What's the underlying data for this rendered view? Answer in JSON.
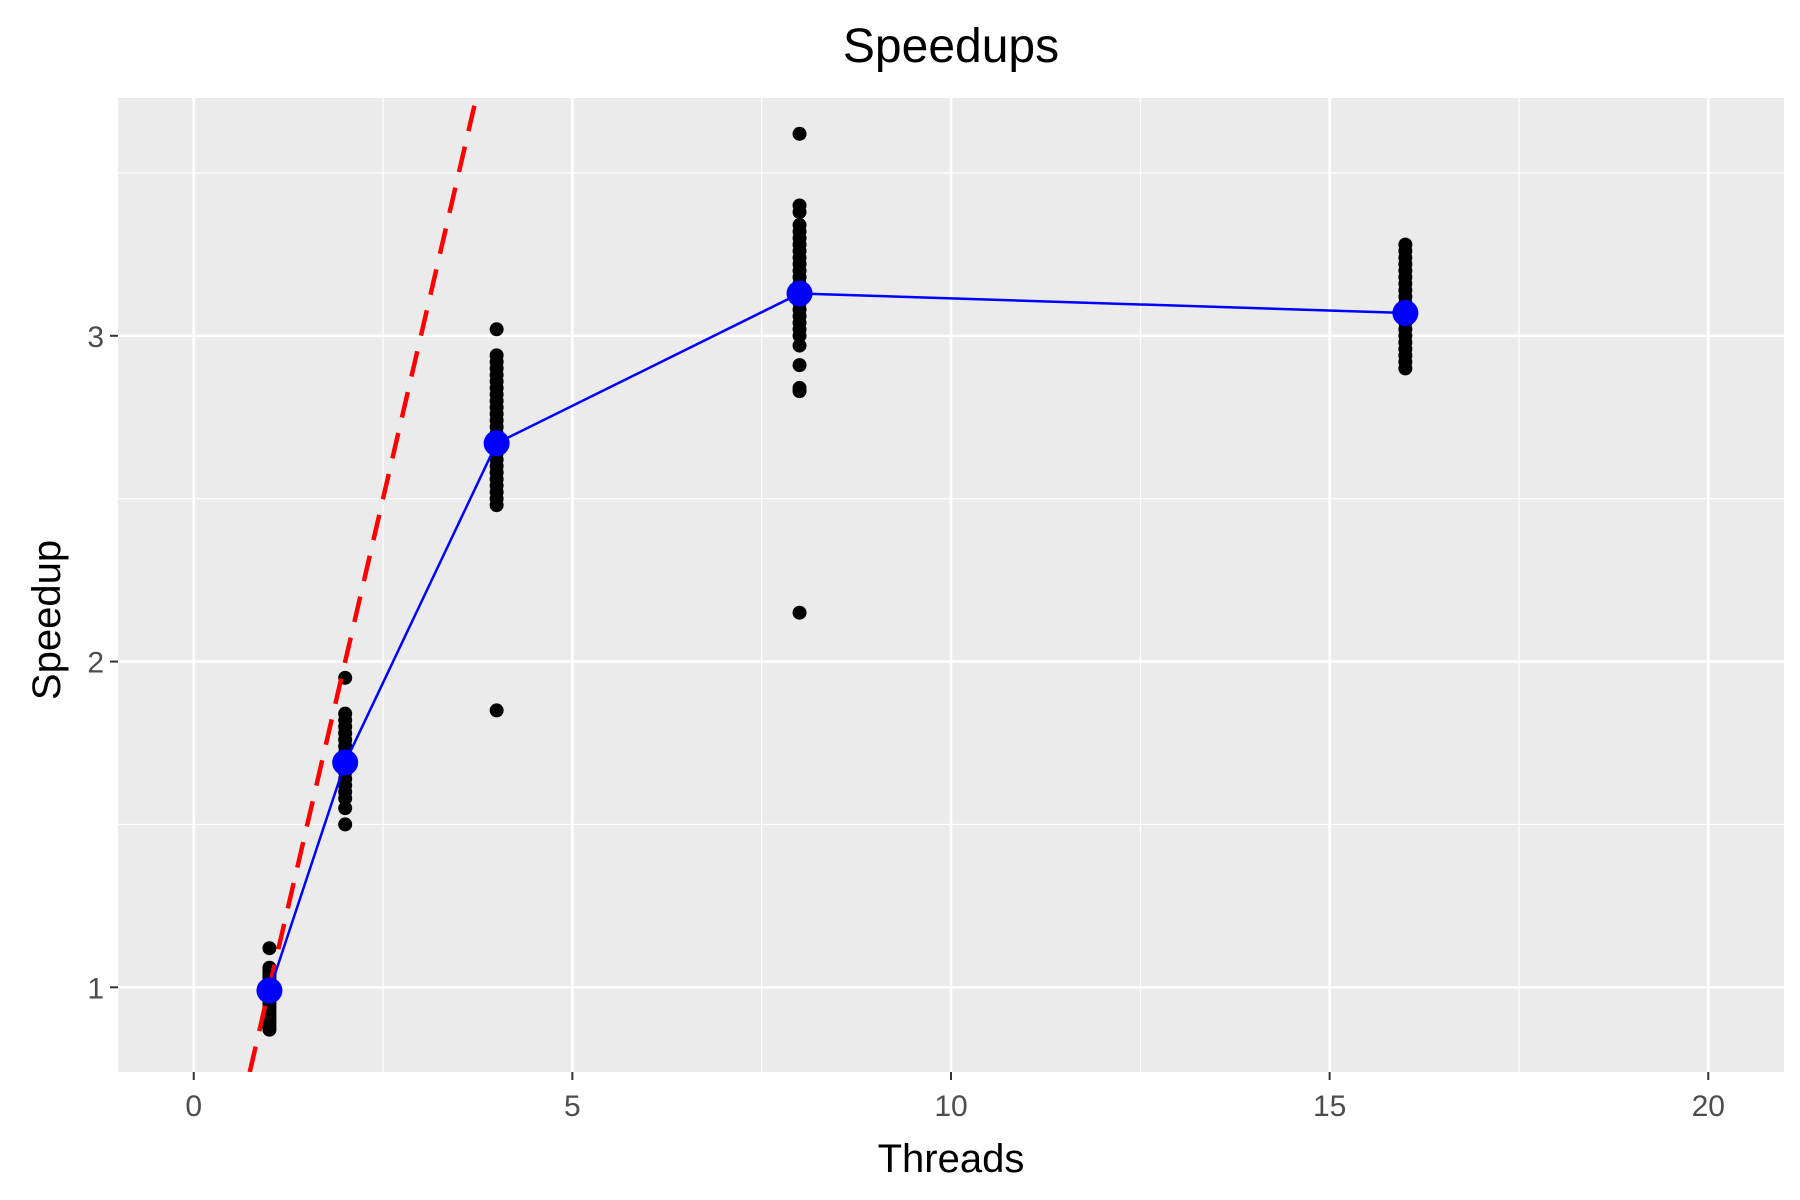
{
  "chart_data": {
    "type": "scatter",
    "title": "Speedups",
    "xlabel": "Threads",
    "ylabel": "Speedup",
    "xlim": [
      -1,
      21
    ],
    "ylim": [
      0.74,
      3.73
    ],
    "x_ticks": [
      0,
      5,
      10,
      15,
      20
    ],
    "x_tick_labels": [
      "0",
      "5",
      "10",
      "15",
      "20"
    ],
    "y_ticks": [
      1,
      2,
      3
    ],
    "y_tick_labels": [
      "1",
      "2",
      "3"
    ],
    "grid": true,
    "legend": "none",
    "colors": {
      "panel_background": "#ebebeb",
      "grid": "#ffffff",
      "points": "#000000",
      "mean_series": "#0000ff",
      "ideal_line": "#ff0000"
    },
    "series": [
      {
        "kind": "points",
        "points": [
          [
            1,
            0.87
          ],
          [
            1,
            0.88
          ],
          [
            1,
            0.89
          ],
          [
            1,
            0.9
          ],
          [
            1,
            0.91
          ],
          [
            1,
            0.92
          ],
          [
            1,
            0.93
          ],
          [
            1,
            0.94
          ],
          [
            1,
            0.95
          ],
          [
            1,
            0.96
          ],
          [
            1,
            0.97
          ],
          [
            1,
            0.98
          ],
          [
            1,
            0.99
          ],
          [
            1,
            1.0
          ],
          [
            1,
            1.01
          ],
          [
            1,
            1.02
          ],
          [
            1,
            1.03
          ],
          [
            1,
            1.04
          ],
          [
            1,
            1.05
          ],
          [
            1,
            1.06
          ],
          [
            1,
            1.12
          ],
          [
            2,
            1.5
          ],
          [
            2,
            1.55
          ],
          [
            2,
            1.58
          ],
          [
            2,
            1.6
          ],
          [
            2,
            1.62
          ],
          [
            2,
            1.64
          ],
          [
            2,
            1.66
          ],
          [
            2,
            1.68
          ],
          [
            2,
            1.7
          ],
          [
            2,
            1.72
          ],
          [
            2,
            1.74
          ],
          [
            2,
            1.76
          ],
          [
            2,
            1.78
          ],
          [
            2,
            1.8
          ],
          [
            2,
            1.82
          ],
          [
            2,
            1.84
          ],
          [
            2,
            1.95
          ],
          [
            4,
            1.85
          ],
          [
            4,
            2.48
          ],
          [
            4,
            2.5
          ],
          [
            4,
            2.52
          ],
          [
            4,
            2.54
          ],
          [
            4,
            2.56
          ],
          [
            4,
            2.58
          ],
          [
            4,
            2.6
          ],
          [
            4,
            2.62
          ],
          [
            4,
            2.64
          ],
          [
            4,
            2.66
          ],
          [
            4,
            2.68
          ],
          [
            4,
            2.7
          ],
          [
            4,
            2.72
          ],
          [
            4,
            2.74
          ],
          [
            4,
            2.76
          ],
          [
            4,
            2.78
          ],
          [
            4,
            2.8
          ],
          [
            4,
            2.82
          ],
          [
            4,
            2.84
          ],
          [
            4,
            2.86
          ],
          [
            4,
            2.88
          ],
          [
            4,
            2.9
          ],
          [
            4,
            2.92
          ],
          [
            4,
            2.94
          ],
          [
            4,
            3.02
          ],
          [
            8,
            2.15
          ],
          [
            8,
            2.83
          ],
          [
            8,
            2.84
          ],
          [
            8,
            2.91
          ],
          [
            8,
            2.97
          ],
          [
            8,
            3.0
          ],
          [
            8,
            3.02
          ],
          [
            8,
            3.04
          ],
          [
            8,
            3.06
          ],
          [
            8,
            3.08
          ],
          [
            8,
            3.1
          ],
          [
            8,
            3.12
          ],
          [
            8,
            3.14
          ],
          [
            8,
            3.16
          ],
          [
            8,
            3.18
          ],
          [
            8,
            3.2
          ],
          [
            8,
            3.22
          ],
          [
            8,
            3.24
          ],
          [
            8,
            3.26
          ],
          [
            8,
            3.28
          ],
          [
            8,
            3.3
          ],
          [
            8,
            3.32
          ],
          [
            8,
            3.34
          ],
          [
            8,
            3.38
          ],
          [
            8,
            3.4
          ],
          [
            8,
            3.62
          ],
          [
            16,
            2.9
          ],
          [
            16,
            2.92
          ],
          [
            16,
            2.94
          ],
          [
            16,
            2.96
          ],
          [
            16,
            2.98
          ],
          [
            16,
            3.0
          ],
          [
            16,
            3.02
          ],
          [
            16,
            3.04
          ],
          [
            16,
            3.06
          ],
          [
            16,
            3.08
          ],
          [
            16,
            3.1
          ],
          [
            16,
            3.12
          ],
          [
            16,
            3.14
          ],
          [
            16,
            3.16
          ],
          [
            16,
            3.18
          ],
          [
            16,
            3.2
          ],
          [
            16,
            3.22
          ],
          [
            16,
            3.24
          ],
          [
            16,
            3.26
          ],
          [
            16,
            3.28
          ]
        ]
      },
      {
        "kind": "mean-line",
        "x": [
          1,
          2,
          4,
          8,
          16
        ],
        "y": [
          0.99,
          1.69,
          2.67,
          3.13,
          3.07
        ]
      },
      {
        "kind": "ideal-dashed-line",
        "x": [
          0.74,
          3.73
        ],
        "y": [
          0.74,
          3.73
        ]
      }
    ]
  }
}
